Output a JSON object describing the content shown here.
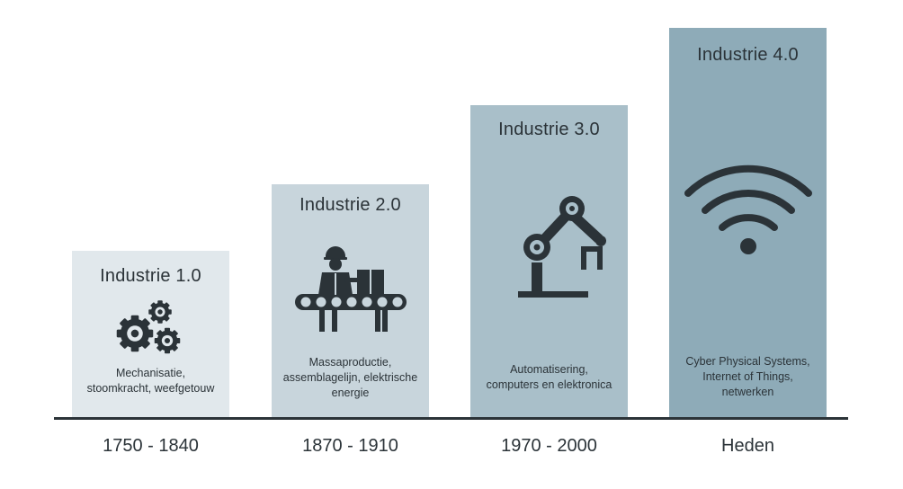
{
  "stages": [
    {
      "title": "Industrie 1.0",
      "icon": "gears-icon",
      "description": [
        "Mechanisatie,",
        "stoomkracht, weefgetouw"
      ],
      "period": "1750 - 1840",
      "color": "#e1e8ec"
    },
    {
      "title": "Industrie 2.0",
      "icon": "assembly-line-worker-icon",
      "description": [
        "Massaproductie,",
        "assemblagelijn, elektrische",
        "energie"
      ],
      "period": "1870 - 1910",
      "color": "#c8d5dc"
    },
    {
      "title": "Industrie 3.0",
      "icon": "robot-arm-icon",
      "description": [
        "Automatisering,",
        "computers en elektronica"
      ],
      "period": "1970 - 2000",
      "color": "#a9bfc9"
    },
    {
      "title": "Industrie 4.0",
      "icon": "wifi-icon",
      "description": [
        "Cyber Physical Systems,",
        "Internet of Things,",
        "netwerken"
      ],
      "period": "Heden",
      "color": "#8eabb8"
    }
  ],
  "ink_color": "#2b3338"
}
